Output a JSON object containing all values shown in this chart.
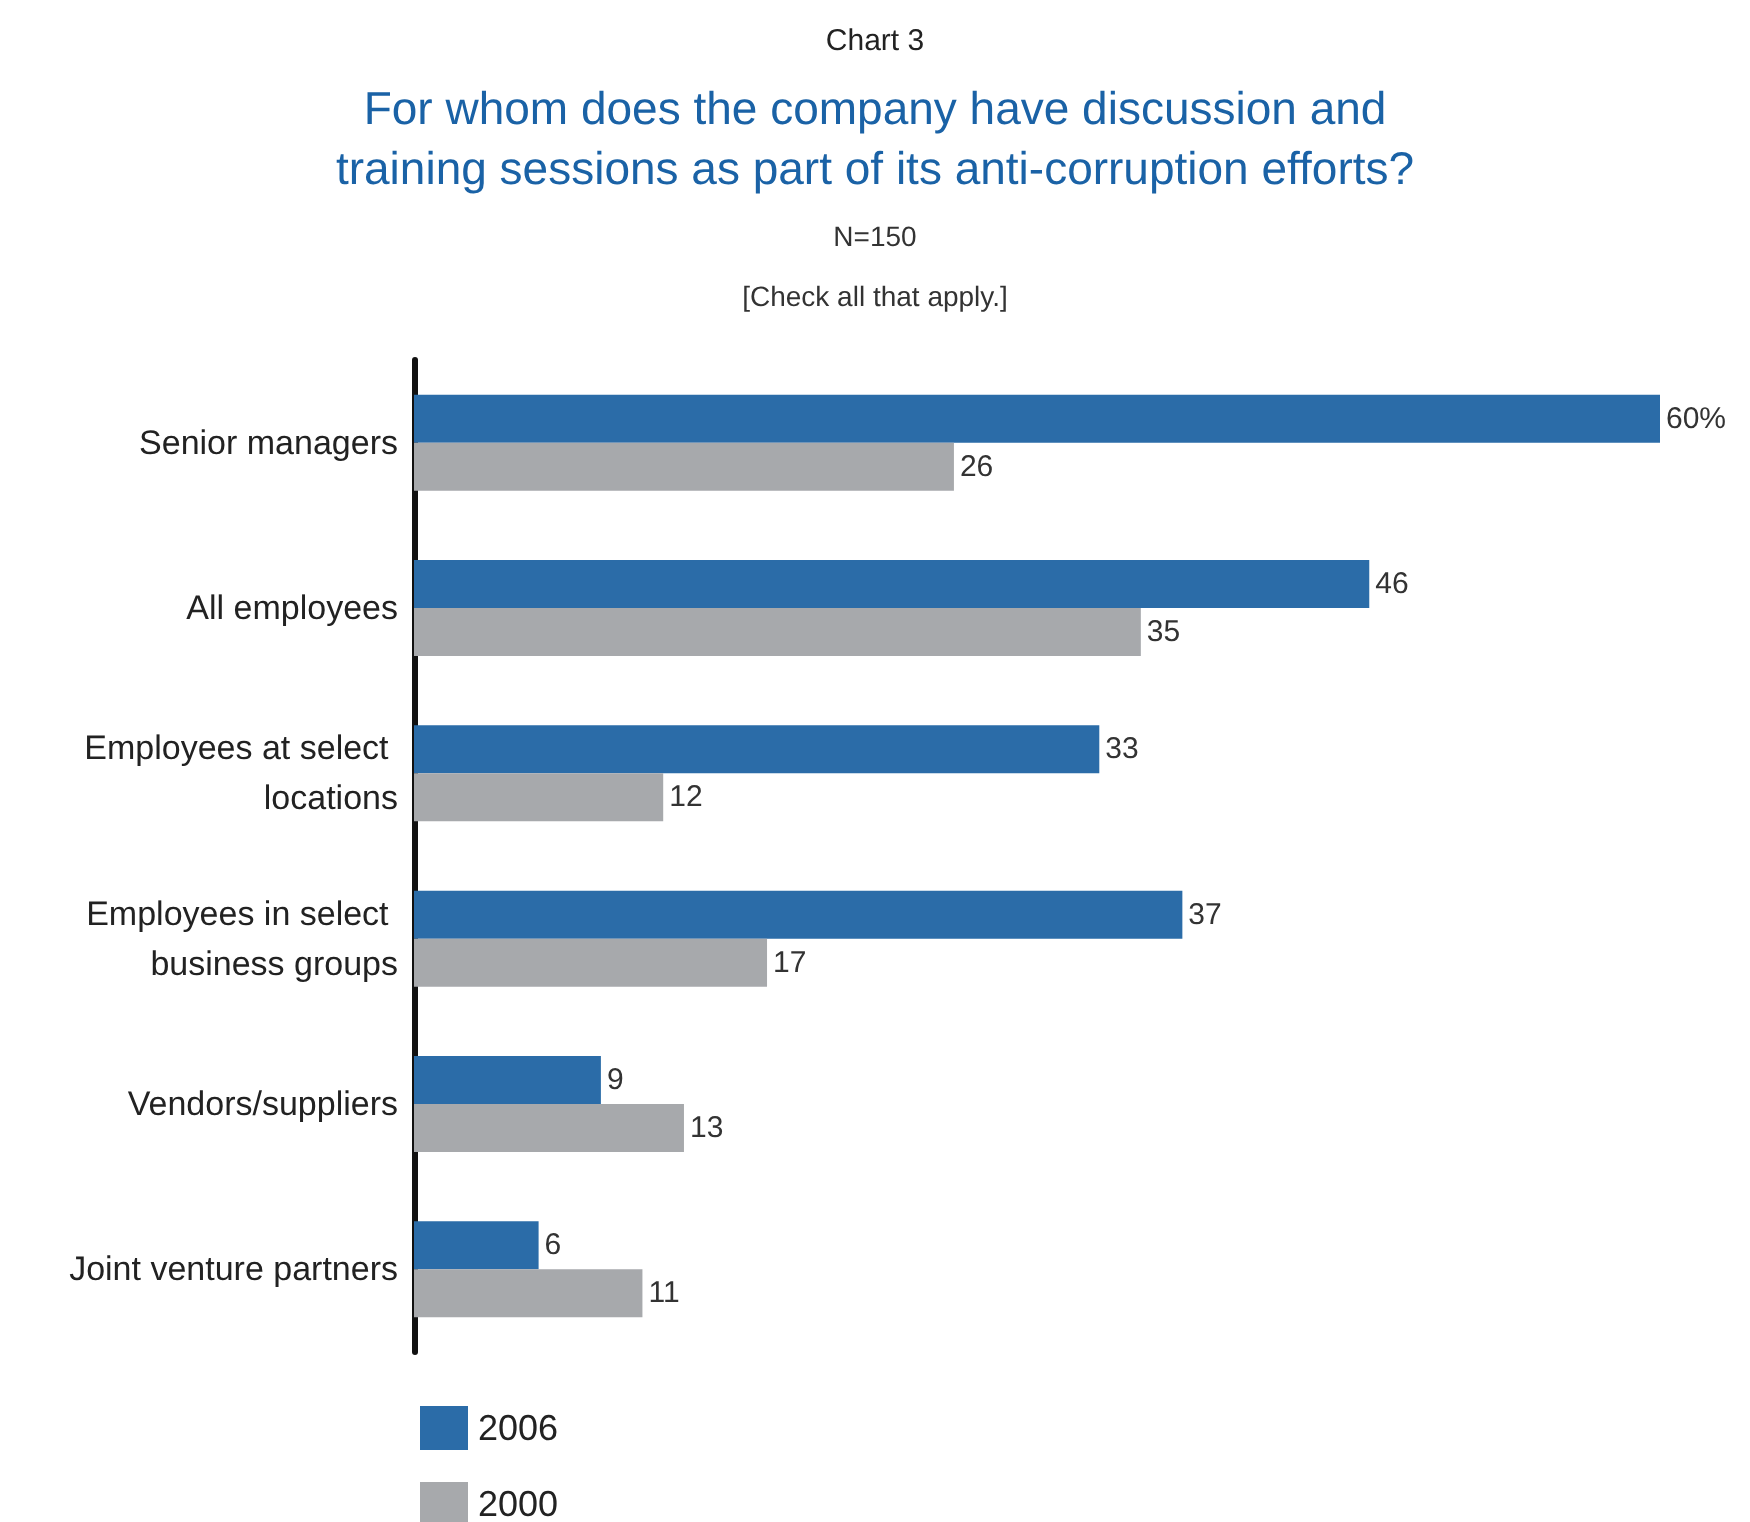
{
  "chart_data": {
    "type": "bar",
    "orientation": "horizontal",
    "title": "For whom does the company have discussion and\ntraining sessions as part of its anti-corruption efforts?",
    "subtitle": "N=150",
    "annotations": [
      "Chart 3",
      "[Check all that apply.]"
    ],
    "categories": [
      "Senior managers",
      "All employees",
      "Employees at select locations",
      "Employees in select business groups",
      "Vendors/suppliers",
      "Joint venture partners"
    ],
    "series": [
      {
        "name": "2006",
        "color": "#2b6ca8",
        "values": [
          60,
          46,
          33,
          37,
          9,
          6
        ],
        "value_labels": [
          "60%",
          "46",
          "33",
          "37",
          "9",
          "6"
        ]
      },
      {
        "name": "2000",
        "color": "#a7a9ac",
        "values": [
          26,
          35,
          12,
          17,
          13,
          11
        ],
        "value_labels": [
          "26",
          "35",
          "12",
          "17",
          "13",
          "11"
        ]
      }
    ],
    "legend": "bottom left"
  }
}
